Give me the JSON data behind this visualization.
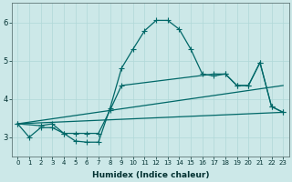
{
  "xlabel": "Humidex (Indice chaleur)",
  "ylabel": "",
  "background_color": "#cce8e8",
  "line_color": "#006868",
  "grid_color": "#b0d8d8",
  "xlim": [
    -0.5,
    23.5
  ],
  "ylim": [
    2.5,
    6.5
  ],
  "xticks": [
    0,
    1,
    2,
    3,
    4,
    5,
    6,
    7,
    8,
    9,
    10,
    11,
    12,
    13,
    14,
    15,
    16,
    17,
    18,
    19,
    20,
    21,
    22,
    23
  ],
  "yticks": [
    3,
    4,
    5,
    6
  ],
  "line1_x": [
    0,
    1,
    2,
    3,
    4,
    5,
    6,
    7,
    8,
    9,
    10,
    11,
    12,
    13,
    14,
    15,
    16,
    17,
    18,
    19,
    20,
    21,
    22,
    23
  ],
  "line1_y": [
    3.35,
    3.0,
    3.25,
    3.25,
    3.1,
    2.9,
    2.87,
    2.87,
    3.75,
    4.8,
    5.3,
    5.78,
    6.05,
    6.05,
    5.82,
    5.3,
    4.65,
    4.6,
    4.65,
    4.35,
    4.35,
    4.95,
    3.8,
    3.65
  ],
  "line2_x": [
    0,
    2,
    3,
    4,
    5,
    6,
    7,
    8,
    9,
    17,
    18,
    19,
    20,
    21,
    22,
    23
  ],
  "line2_y": [
    3.35,
    3.3,
    3.35,
    3.1,
    3.1,
    3.1,
    3.1,
    3.7,
    4.35,
    4.65,
    4.65,
    4.35,
    4.35,
    4.95,
    3.8,
    3.65
  ],
  "line3_x": [
    0,
    23
  ],
  "line3_y": [
    3.35,
    3.65
  ],
  "line4_x": [
    0,
    23
  ],
  "line4_y": [
    3.35,
    4.35
  ]
}
